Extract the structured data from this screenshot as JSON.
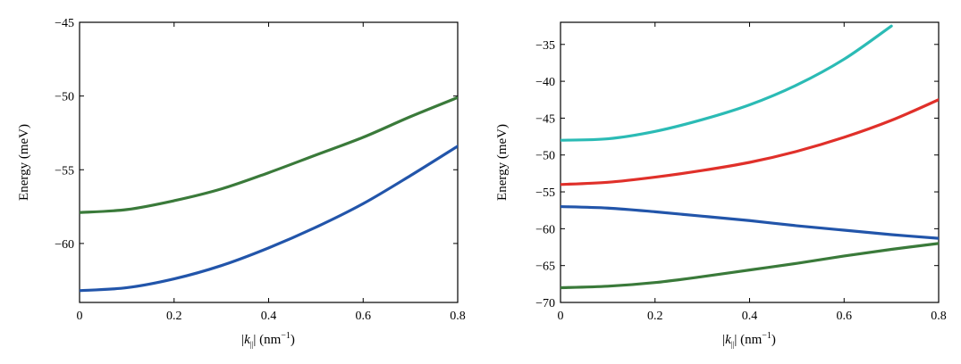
{
  "chart_data": [
    {
      "type": "line",
      "xlabel": {
        "pre": "|",
        "k": "k",
        "sub": "||",
        "post": "| (nm",
        "sup": "−1",
        "end": ")"
      },
      "ylabel": "Energy (meV)",
      "xlim": [
        0,
        0.8
      ],
      "ylim": [
        -64,
        -45
      ],
      "xticks": [
        {
          "v": 0,
          "label": "0"
        },
        {
          "v": 0.2,
          "label": "0.2"
        },
        {
          "v": 0.4,
          "label": "0.4"
        },
        {
          "v": 0.6,
          "label": "0.6"
        },
        {
          "v": 0.8,
          "label": "0.8"
        }
      ],
      "yticks": [
        {
          "v": -45,
          "label": "−45"
        },
        {
          "v": -50,
          "label": "−50"
        },
        {
          "v": -55,
          "label": "−55"
        },
        {
          "v": -60,
          "label": "−60"
        }
      ],
      "series": [
        {
          "color": "#3a7a3a",
          "x": [
            0,
            0.1,
            0.2,
            0.3,
            0.4,
            0.5,
            0.6,
            0.7,
            0.8
          ],
          "y": [
            -57.9,
            -57.7,
            -57.1,
            -56.3,
            -55.2,
            -54.0,
            -52.8,
            -51.4,
            -50.1
          ]
        },
        {
          "color": "#2255aa",
          "x": [
            0,
            0.1,
            0.2,
            0.3,
            0.4,
            0.5,
            0.6,
            0.7,
            0.8
          ],
          "y": [
            -63.2,
            -63.0,
            -62.4,
            -61.5,
            -60.3,
            -58.9,
            -57.3,
            -55.4,
            -53.4
          ]
        }
      ]
    },
    {
      "type": "line",
      "xlabel": {
        "pre": "|",
        "k": "k",
        "sub": "||",
        "post": "| (nm",
        "sup": "−1",
        "end": ")"
      },
      "ylabel": "Energy (meV)",
      "xlim": [
        0,
        0.8
      ],
      "ylim": [
        -70,
        -32
      ],
      "xticks": [
        {
          "v": 0,
          "label": "0"
        },
        {
          "v": 0.2,
          "label": "0.2"
        },
        {
          "v": 0.4,
          "label": "0.4"
        },
        {
          "v": 0.6,
          "label": "0.6"
        },
        {
          "v": 0.8,
          "label": "0.8"
        }
      ],
      "yticks": [
        {
          "v": -35,
          "label": "−35"
        },
        {
          "v": -40,
          "label": "−40"
        },
        {
          "v": -45,
          "label": "−45"
        },
        {
          "v": -50,
          "label": "−50"
        },
        {
          "v": -55,
          "label": "−55"
        },
        {
          "v": -60,
          "label": "−60"
        },
        {
          "v": -65,
          "label": "−65"
        },
        {
          "v": -70,
          "label": "−70"
        }
      ],
      "series": [
        {
          "color": "#2bbbb5",
          "x": [
            0,
            0.1,
            0.2,
            0.3,
            0.4,
            0.5,
            0.6,
            0.7
          ],
          "y": [
            -48.0,
            -47.8,
            -46.8,
            -45.2,
            -43.2,
            -40.5,
            -37.0,
            -32.5
          ]
        },
        {
          "color": "#e0302a",
          "x": [
            0,
            0.1,
            0.2,
            0.3,
            0.4,
            0.5,
            0.6,
            0.7,
            0.8
          ],
          "y": [
            -54.0,
            -53.7,
            -53.0,
            -52.1,
            -51.0,
            -49.5,
            -47.6,
            -45.3,
            -42.5
          ]
        },
        {
          "color": "#2255aa",
          "x": [
            0,
            0.1,
            0.2,
            0.3,
            0.4,
            0.5,
            0.6,
            0.7,
            0.8
          ],
          "y": [
            -57.0,
            -57.2,
            -57.7,
            -58.3,
            -58.9,
            -59.6,
            -60.2,
            -60.8,
            -61.3
          ]
        },
        {
          "color": "#3a7a3a",
          "x": [
            0,
            0.1,
            0.2,
            0.3,
            0.4,
            0.5,
            0.6,
            0.7,
            0.8
          ],
          "y": [
            -68.0,
            -67.8,
            -67.3,
            -66.5,
            -65.6,
            -64.7,
            -63.7,
            -62.8,
            -62.0
          ]
        }
      ]
    }
  ]
}
